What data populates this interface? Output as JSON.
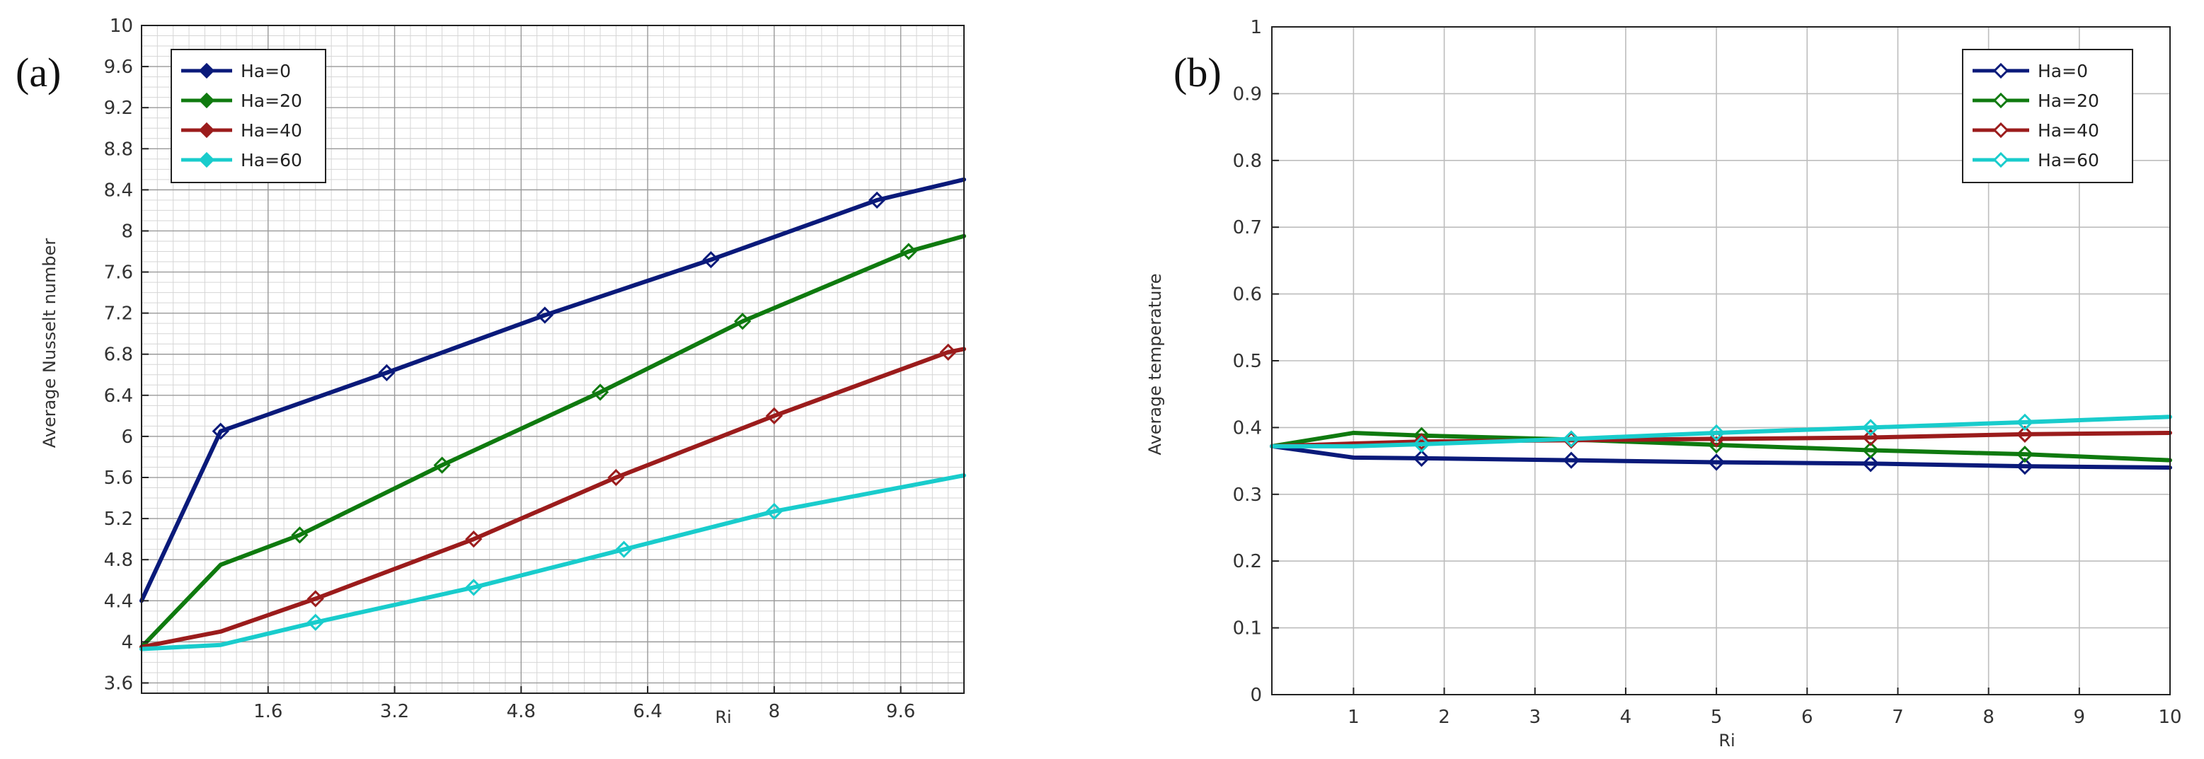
{
  "chart_data": [
    {
      "panel": "(a)",
      "type": "line",
      "title": "",
      "xlabel": "Ri",
      "ylabel": "Average Nusselt number",
      "xlim": [
        0,
        10.4
      ],
      "ylim": [
        3.5,
        10
      ],
      "xticks": [
        1.6,
        3.2,
        4.8,
        6.4,
        8,
        9.6
      ],
      "xtick_labels": [
        "1.6",
        "3.2",
        "4.8",
        "6.4",
        "8",
        "9.6"
      ],
      "yticks": [
        3.6,
        4,
        4.4,
        4.8,
        5.2,
        5.6,
        6,
        6.4,
        6.8,
        7.2,
        7.6,
        8,
        8.4,
        8.8,
        9.2,
        9.6,
        10
      ],
      "ytick_labels": [
        "3.6",
        "4",
        "4.4",
        "4.8",
        "5.2",
        "5.6",
        "6",
        "6.4",
        "6.8",
        "7.2",
        "7.6",
        "8",
        "8.4",
        "8.8",
        "9.2",
        "9.6",
        "10"
      ],
      "grid": "major-and-minor",
      "legend_position": "top-left",
      "series": [
        {
          "name": "Ha=0",
          "color": "#0a1a7a",
          "x": [
            0,
            1,
            3.1,
            5.1,
            7.2,
            9.3,
            10.4
          ],
          "y": [
            4.4,
            6.05,
            6.62,
            7.18,
            7.72,
            8.3,
            8.5
          ],
          "markers_x": [
            1,
            3.1,
            5.1,
            7.2,
            9.3
          ]
        },
        {
          "name": "Ha=20",
          "color": "#0f7a0f",
          "x": [
            0,
            1,
            2,
            3.8,
            5.8,
            7.6,
            9.7,
            10.4
          ],
          "y": [
            3.95,
            4.75,
            5.04,
            5.72,
            6.43,
            7.12,
            7.8,
            7.95
          ],
          "markers_x": [
            2,
            3.8,
            5.8,
            7.6,
            9.7
          ]
        },
        {
          "name": "Ha=40",
          "color": "#9b1c1c",
          "x": [
            0,
            1,
            2.2,
            4.2,
            6,
            8,
            10.2,
            10.4
          ],
          "y": [
            3.95,
            4.1,
            4.42,
            5.0,
            5.6,
            6.2,
            6.82,
            6.85
          ],
          "markers_x": [
            2.2,
            4.2,
            6,
            8,
            10.2
          ]
        },
        {
          "name": "Ha=60",
          "color": "#19cccc",
          "x": [
            0,
            1,
            2.2,
            4.2,
            6.1,
            8,
            10.4
          ],
          "y": [
            3.93,
            3.97,
            4.19,
            4.53,
            4.9,
            5.27,
            5.62
          ],
          "markers_x": [
            2.2,
            4.2,
            6.1,
            8
          ]
        }
      ]
    },
    {
      "panel": "(b)",
      "type": "line",
      "title": "",
      "xlabel": "Ri",
      "ylabel": "Average temperature",
      "xlim": [
        0.1,
        10
      ],
      "ylim": [
        0,
        1
      ],
      "xticks": [
        1,
        2,
        3,
        4,
        5,
        6,
        7,
        8,
        9,
        10
      ],
      "xtick_labels": [
        "1",
        "2",
        "3",
        "4",
        "5",
        "6",
        "7",
        "8",
        "9",
        "10"
      ],
      "yticks": [
        0,
        0.1,
        0.2,
        0.3,
        0.4,
        0.5,
        0.6,
        0.7,
        0.8,
        0.9,
        1
      ],
      "ytick_labels": [
        "0",
        "0.1",
        "0.2",
        "0.3",
        "0.4",
        "0.5",
        "0.6",
        "0.7",
        "0.8",
        "0.9",
        "1"
      ],
      "grid": "major",
      "legend_position": "top-right",
      "series": [
        {
          "name": "Ha=0",
          "color": "#0a1a7a",
          "x": [
            0.1,
            1,
            1.75,
            3.4,
            5,
            6.7,
            8.4,
            10
          ],
          "y": [
            0.372,
            0.355,
            0.354,
            0.351,
            0.348,
            0.346,
            0.342,
            0.34
          ],
          "markers_x": [
            1.75,
            3.4,
            5,
            6.7,
            8.4
          ]
        },
        {
          "name": "Ha=20",
          "color": "#0f7a0f",
          "x": [
            0.1,
            1,
            1.75,
            3.4,
            5,
            6.7,
            8.4,
            10
          ],
          "y": [
            0.372,
            0.392,
            0.388,
            0.382,
            0.374,
            0.366,
            0.36,
            0.351
          ],
          "markers_x": [
            1.75,
            3.4,
            5,
            6.7,
            8.4
          ]
        },
        {
          "name": "Ha=40",
          "color": "#9b1c1c",
          "x": [
            0.1,
            1,
            1.75,
            3.4,
            5,
            6.7,
            8.4,
            10
          ],
          "y": [
            0.372,
            0.376,
            0.379,
            0.381,
            0.383,
            0.385,
            0.39,
            0.392
          ],
          "markers_x": [
            1.75,
            3.4,
            5,
            6.7,
            8.4
          ]
        },
        {
          "name": "Ha=60",
          "color": "#19cccc",
          "x": [
            0.1,
            1,
            1.75,
            3.4,
            5,
            6.7,
            8.4,
            10
          ],
          "y": [
            0.372,
            0.372,
            0.375,
            0.383,
            0.392,
            0.4,
            0.408,
            0.416
          ],
          "markers_x": [
            1.75,
            3.4,
            5,
            6.7,
            8.4
          ]
        }
      ]
    }
  ]
}
